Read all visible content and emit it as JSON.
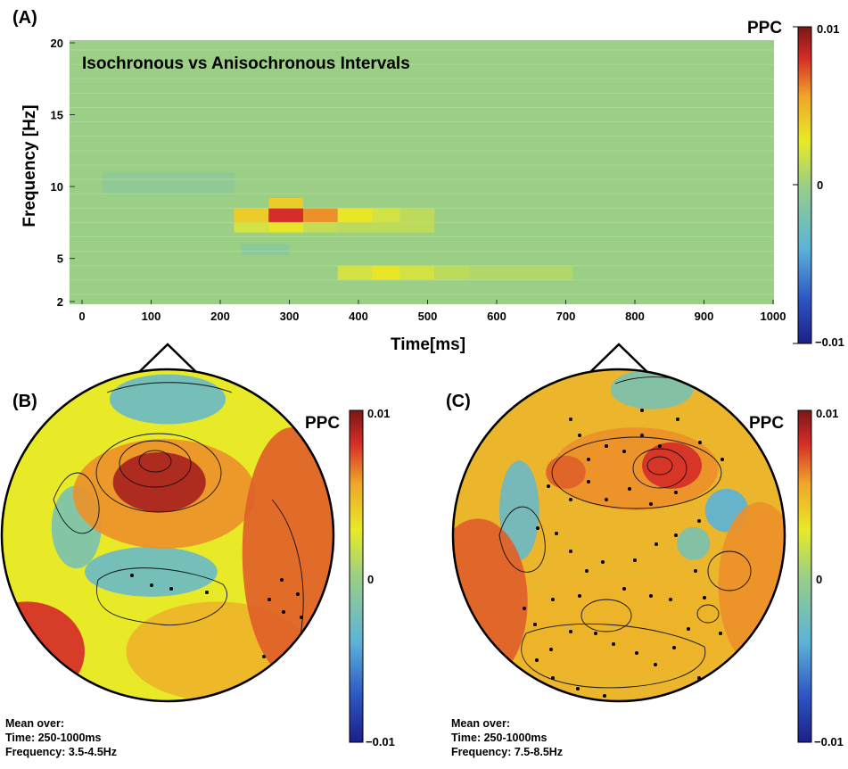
{
  "colors": {
    "colormap": [
      "#1c1f87",
      "#2e55c4",
      "#5bb3d8",
      "#9bcf86",
      "#e8ea27",
      "#f0a52a",
      "#d52d28",
      "#7a1717"
    ],
    "background_field": "#9bcf86",
    "electrode_dot": "#000000"
  },
  "panels": {
    "a": {
      "label": "(A)",
      "title": "Isochronous vs Anisochronous Intervals",
      "colorbar": {
        "title": "PPC",
        "max_label": "0.01",
        "mid_label": "0",
        "min_label": "−0.01"
      }
    },
    "b": {
      "label": "(B)",
      "colorbar": {
        "title": "PPC",
        "max_label": "0.01",
        "mid_label": "0",
        "min_label": "−0.01"
      },
      "note": {
        "line1": "Mean over:",
        "line2": "Time: 250-1000ms",
        "line3": "Frequency: 3.5-4.5Hz"
      }
    },
    "c": {
      "label": "(C)",
      "colorbar": {
        "title": "PPC",
        "max_label": "0.01",
        "mid_label": "0",
        "min_label": "−0.01"
      },
      "note": {
        "line1": "Mean over:",
        "line2": "Time: 250-1000ms",
        "line3": "Frequency: 7.5-8.5Hz"
      }
    }
  },
  "chart_data": [
    {
      "type": "heatmap",
      "title": "Isochronous vs Anisochronous Intervals",
      "xlabel": "Time[ms]",
      "ylabel": "Frequency [Hz]",
      "xlim": [
        0,
        1000
      ],
      "ylim": [
        2,
        20
      ],
      "xticks": [
        0,
        100,
        200,
        300,
        400,
        500,
        600,
        700,
        800,
        900,
        1000
      ],
      "yticks": [
        2,
        5,
        10,
        15,
        20
      ],
      "colorbar": {
        "label": "PPC",
        "min": -0.01,
        "max": 0.01
      },
      "cells": [
        {
          "t0": 220,
          "t1": 270,
          "f0": 7.5,
          "f1": 8.5,
          "v": 0.004
        },
        {
          "t0": 270,
          "t1": 320,
          "f0": 7.5,
          "f1": 8.5,
          "v": 0.008
        },
        {
          "t0": 320,
          "t1": 370,
          "f0": 7.5,
          "f1": 8.5,
          "v": 0.006
        },
        {
          "t0": 370,
          "t1": 420,
          "f0": 7.5,
          "f1": 8.5,
          "v": 0.003
        },
        {
          "t0": 420,
          "t1": 460,
          "f0": 7.5,
          "f1": 8.5,
          "v": 0.002
        },
        {
          "t0": 460,
          "t1": 510,
          "f0": 7.5,
          "f1": 8.5,
          "v": 0.0012
        },
        {
          "t0": 270,
          "t1": 320,
          "f0": 8.5,
          "f1": 9.2,
          "v": 0.004
        },
        {
          "t0": 270,
          "t1": 320,
          "f0": 6.8,
          "f1": 7.5,
          "v": 0.003
        },
        {
          "t0": 220,
          "t1": 270,
          "f0": 6.8,
          "f1": 7.5,
          "v": 0.002
        },
        {
          "t0": 320,
          "t1": 370,
          "f0": 6.8,
          "f1": 7.5,
          "v": 0.0015
        },
        {
          "t0": 370,
          "t1": 510,
          "f0": 6.8,
          "f1": 7.5,
          "v": 0.0012
        },
        {
          "t0": 370,
          "t1": 510,
          "f0": 3.5,
          "f1": 4.5,
          "v": 0.002
        },
        {
          "t0": 420,
          "t1": 460,
          "f0": 3.5,
          "f1": 4.5,
          "v": 0.003
        },
        {
          "t0": 510,
          "t1": 560,
          "f0": 3.5,
          "f1": 4.5,
          "v": 0.0012
        },
        {
          "t0": 560,
          "t1": 710,
          "f0": 3.5,
          "f1": 4.5,
          "v": 0.0008
        },
        {
          "t0": 30,
          "t1": 220,
          "f0": 9.5,
          "f1": 11,
          "v": -0.0008
        },
        {
          "t0": 230,
          "t1": 300,
          "f0": 5.2,
          "f1": 6,
          "v": -0.001
        }
      ]
    },
    {
      "type": "heatmap",
      "title": "",
      "note": "Topographic scalp map, mean over Time: 250-1000ms, Frequency: 3.5-4.5Hz",
      "colorbar": {
        "label": "PPC",
        "min": -0.01,
        "max": 0.01
      },
      "blobs": [
        {
          "u": -0.02,
          "v": -0.25,
          "rx": 0.55,
          "ry": 0.33,
          "val": 0.006
        },
        {
          "u": -0.05,
          "v": -0.32,
          "rx": 0.28,
          "ry": 0.18,
          "val": 0.009
        },
        {
          "u": 0.75,
          "v": 0.1,
          "rx": 0.3,
          "ry": 0.75,
          "val": 0.007
        },
        {
          "u": -0.85,
          "v": 0.7,
          "rx": 0.35,
          "ry": 0.3,
          "val": 0.008
        },
        {
          "u": 0.3,
          "v": 0.7,
          "rx": 0.55,
          "ry": 0.3,
          "val": 0.005
        },
        {
          "u": -0.1,
          "v": 0.22,
          "rx": 0.4,
          "ry": 0.15,
          "val": -0.003
        },
        {
          "u": 0.0,
          "v": -0.82,
          "rx": 0.35,
          "ry": 0.15,
          "val": -0.003
        },
        {
          "u": -0.55,
          "v": -0.05,
          "rx": 0.15,
          "ry": 0.25,
          "val": -0.002
        }
      ]
    },
    {
      "type": "heatmap",
      "title": "",
      "note": "Topographic scalp map, mean over Time: 250-1000ms, Frequency: 7.5-8.5Hz",
      "colorbar": {
        "label": "PPC",
        "min": -0.01,
        "max": 0.01
      },
      "blobs": [
        {
          "u": 0.1,
          "v": -0.4,
          "rx": 0.5,
          "ry": 0.25,
          "val": 0.006
        },
        {
          "u": 0.32,
          "v": -0.42,
          "rx": 0.18,
          "ry": 0.14,
          "val": 0.008
        },
        {
          "u": -0.32,
          "v": -0.38,
          "rx": 0.12,
          "ry": 0.1,
          "val": 0.007
        },
        {
          "u": -0.85,
          "v": 0.4,
          "rx": 0.3,
          "ry": 0.5,
          "val": 0.007
        },
        {
          "u": 0.0,
          "v": 0.55,
          "rx": 0.7,
          "ry": 0.3,
          "val": 0.005
        },
        {
          "u": 0.85,
          "v": 0.3,
          "rx": 0.25,
          "ry": 0.5,
          "val": 0.006
        },
        {
          "u": -0.6,
          "v": -0.15,
          "rx": 0.12,
          "ry": 0.3,
          "val": -0.003
        },
        {
          "u": 0.65,
          "v": -0.15,
          "rx": 0.13,
          "ry": 0.13,
          "val": -0.004
        },
        {
          "u": 0.2,
          "v": -0.88,
          "rx": 0.25,
          "ry": 0.12,
          "val": -0.002
        },
        {
          "u": 0.45,
          "v": 0.05,
          "rx": 0.1,
          "ry": 0.1,
          "val": -0.002
        }
      ]
    }
  ]
}
